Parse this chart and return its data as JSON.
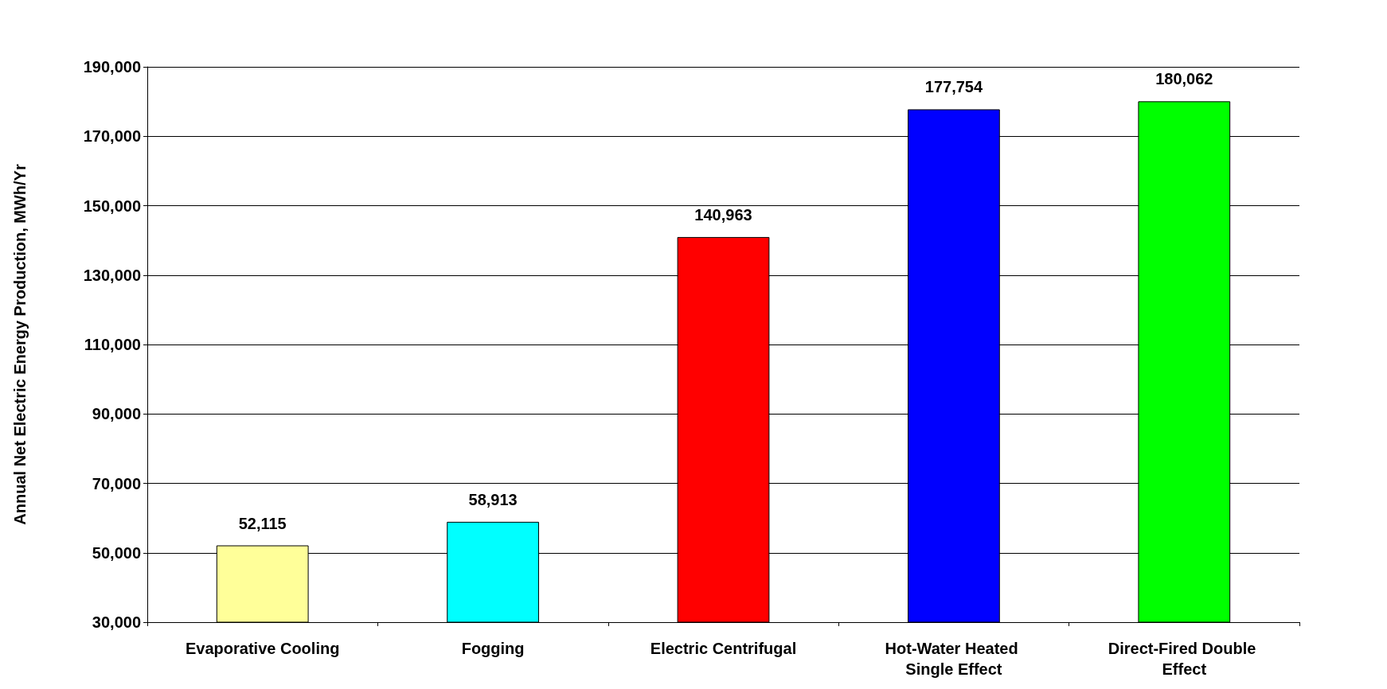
{
  "chart_data": {
    "type": "bar",
    "ylabel": "Annual Net Electric Energy Production, MWh/Yr",
    "categories": [
      "Evaporative Cooling",
      "Fogging",
      "Electric Centrifugal",
      "Hot-Water Heated Single Effect",
      "Direct-Fired Double Effect"
    ],
    "values": [
      52115,
      58913,
      140963,
      177754,
      180062
    ],
    "value_labels": [
      "52,115",
      "58,913",
      "140,963",
      "177,754",
      "180,062"
    ],
    "colors": [
      "#ffff99",
      "#00ffff",
      "#ff0000",
      "#0000ff",
      "#00ff00"
    ],
    "ylim": [
      30000,
      190000
    ],
    "yticks": [
      {
        "value": 30000,
        "label": "30,000"
      },
      {
        "value": 50000,
        "label": "50,000"
      },
      {
        "value": 70000,
        "label": "70,000"
      },
      {
        "value": 90000,
        "label": "90,000"
      },
      {
        "value": 110000,
        "label": "110,000"
      },
      {
        "value": 130000,
        "label": "130,000"
      },
      {
        "value": 150000,
        "label": "150,000"
      },
      {
        "value": 170000,
        "label": "170,000"
      },
      {
        "value": 190000,
        "label": "190,000"
      }
    ],
    "grid": "y"
  }
}
